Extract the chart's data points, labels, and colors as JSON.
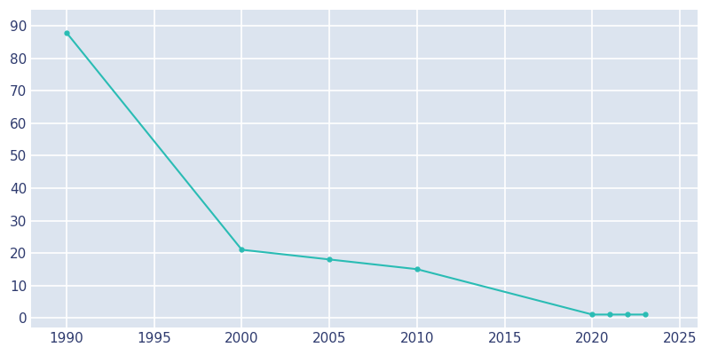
{
  "years": [
    1990,
    2000,
    2005,
    2010,
    2020,
    2021,
    2022,
    2023
  ],
  "population": [
    88,
    21,
    18,
    15,
    1,
    1,
    1,
    1
  ],
  "line_color": "#2abcb4",
  "marker": "o",
  "marker_size": 3.5,
  "bg_color": "#dce4ef",
  "outer_bg": "#ffffff",
  "grid_color": "#ffffff",
  "xlabel": "",
  "ylabel": "",
  "xlim": [
    1988,
    2026
  ],
  "ylim": [
    -3,
    95
  ],
  "xticks": [
    1990,
    1995,
    2000,
    2005,
    2010,
    2015,
    2020,
    2025
  ],
  "yticks": [
    0,
    10,
    20,
    30,
    40,
    50,
    60,
    70,
    80,
    90
  ],
  "tick_color": "#2e3a6e",
  "tick_fontsize": 11
}
